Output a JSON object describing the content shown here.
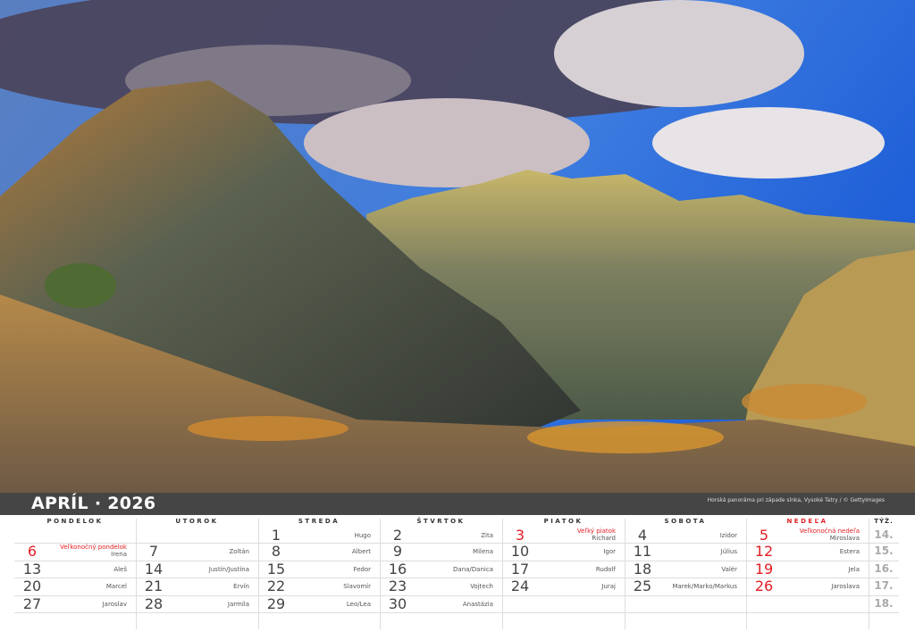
{
  "header": {
    "title": "APRÍL · 2026",
    "credit": "Horská panoráma pri západe slnka, Vysoké Tatry / © GettyImages"
  },
  "days": [
    "PONDELOK",
    "UTOROK",
    "STREDA",
    "ŠTVRTOK",
    "PIATOK",
    "SOBOTA",
    "NEDEĽA"
  ],
  "week_label": "TÝŽ.",
  "colors": {
    "sunday": "#e31e24",
    "band": "#454545"
  },
  "weeks": [
    {
      "no": "14.",
      "cells": [
        null,
        null,
        {
          "d": "1",
          "n": "Hugo"
        },
        {
          "d": "2",
          "n": "Zita"
        },
        {
          "d": "3",
          "n": "Richard",
          "h": "Veľký piatok",
          "red": true
        },
        {
          "d": "4",
          "n": "Izidor"
        },
        {
          "d": "5",
          "n": "Miroslava",
          "h": "Veľkonočná nedeľa",
          "red": true
        }
      ]
    },
    {
      "no": "15.",
      "cells": [
        {
          "d": "6",
          "n": "Irena",
          "h": "Veľkonočný pondelok",
          "red": true
        },
        {
          "d": "7",
          "n": "Zoltán"
        },
        {
          "d": "8",
          "n": "Albert"
        },
        {
          "d": "9",
          "n": "Milena"
        },
        {
          "d": "10",
          "n": "Igor"
        },
        {
          "d": "11",
          "n": "Július"
        },
        {
          "d": "12",
          "n": "Estera",
          "red": true
        }
      ]
    },
    {
      "no": "16.",
      "cells": [
        {
          "d": "13",
          "n": "Aleš"
        },
        {
          "d": "14",
          "n": "Justín/Justína"
        },
        {
          "d": "15",
          "n": "Fedor"
        },
        {
          "d": "16",
          "n": "Dana/Danica"
        },
        {
          "d": "17",
          "n": "Rudolf"
        },
        {
          "d": "18",
          "n": "Valér"
        },
        {
          "d": "19",
          "n": "Jela",
          "red": true
        }
      ]
    },
    {
      "no": "17.",
      "cells": [
        {
          "d": "20",
          "n": "Marcel"
        },
        {
          "d": "21",
          "n": "Ervín"
        },
        {
          "d": "22",
          "n": "Slavomír"
        },
        {
          "d": "23",
          "n": "Vojtech"
        },
        {
          "d": "24",
          "n": "Juraj"
        },
        {
          "d": "25",
          "n": "Marek/Marko/Markus"
        },
        {
          "d": "26",
          "n": "Jaroslava",
          "red": true
        }
      ]
    },
    {
      "no": "18.",
      "cells": [
        {
          "d": "27",
          "n": "Jaroslav"
        },
        {
          "d": "28",
          "n": "Jarmila"
        },
        {
          "d": "29",
          "n": "Leo/Lea"
        },
        {
          "d": "30",
          "n": "Anastázia"
        },
        null,
        null,
        null
      ]
    }
  ]
}
